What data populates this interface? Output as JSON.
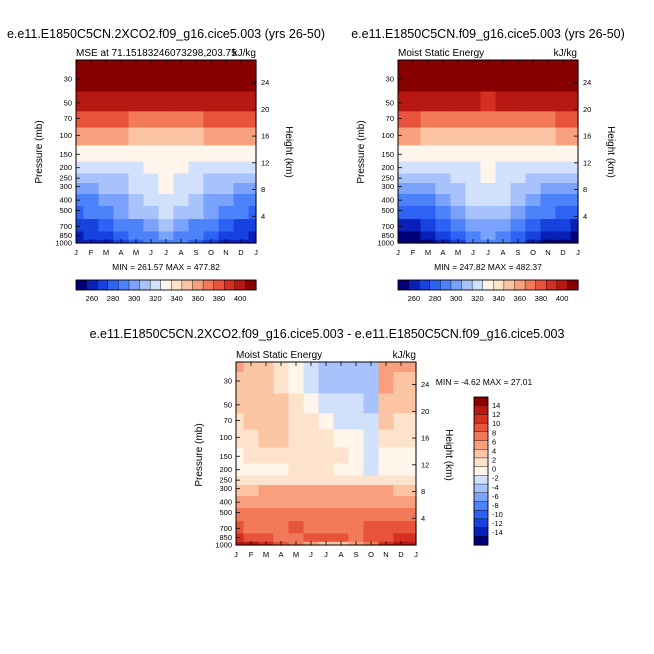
{
  "figure": {
    "bottom_title": "e.e11.E1850C5CN.2XCO2.f09_g16.cice5.003 - e.e11.E1850C5CN.f09_g16.cice5.003"
  },
  "palettes": {
    "absolute": [
      "#00007a",
      "#0a1fb8",
      "#1742e0",
      "#2d62f5",
      "#4d82fb",
      "#7ba3fb",
      "#a8c3fb",
      "#d2e1fb",
      "#fff5ea",
      "#fde2cc",
      "#fbc5a3",
      "#f8a07e",
      "#f27a5b",
      "#e8533c",
      "#d42f21",
      "#b81812",
      "#880000"
    ],
    "difference": [
      "#00007a",
      "#0a1fb8",
      "#1742e0",
      "#2d62f5",
      "#4d82fb",
      "#7ba3fb",
      "#a8c3fb",
      "#d2e1fb",
      "#fff5ea",
      "#fde2cc",
      "#fbc5a3",
      "#f8a07e",
      "#f27a5b",
      "#e8533c",
      "#d42f21",
      "#b81812",
      "#880000"
    ]
  },
  "chart_data": [
    {
      "type": "heatmap",
      "title": "e.e11.E1850C5CN.2XCO2.f09_g16.cice5.003 (yrs 26-50)",
      "subtitle_left": "MSE at 71.15183246073298,203.75",
      "subtitle_right": "kJ/kg",
      "stats": "MIN = 261.57 MAX = 477.82",
      "xlabel": "",
      "ylabel": "Pressure (mb)",
      "ylabel_right": "Height (km)",
      "x_ticks": [
        "J",
        "F",
        "M",
        "A",
        "M",
        "J",
        "J",
        "A",
        "S",
        "O",
        "N",
        "D",
        "J"
      ],
      "y_ticks": [
        "30",
        "50",
        "70",
        "100",
        "150",
        "200",
        "250",
        "300",
        "400",
        "500",
        "700",
        "850",
        "1000"
      ],
      "y_ticks_right": [
        "24",
        "20",
        "16",
        "12",
        "8",
        "4"
      ],
      "ylim": [
        1000,
        20
      ],
      "colorbar_labels": [
        "260",
        "280",
        "300",
        "320",
        "340",
        "360",
        "380",
        "400"
      ],
      "levels": [
        1000,
        850,
        700,
        500,
        400,
        300,
        250,
        200,
        150,
        100,
        70,
        50,
        30,
        20
      ],
      "values": [
        [
          262,
          264,
          268,
          276,
          284,
          292,
          296,
          292,
          285,
          276,
          268,
          264,
          262
        ],
        [
          268,
          270,
          274,
          282,
          290,
          298,
          302,
          298,
          291,
          282,
          274,
          270,
          268
        ],
        [
          276,
          278,
          282,
          290,
          298,
          306,
          310,
          306,
          299,
          290,
          282,
          278,
          276
        ],
        [
          288,
          290,
          294,
          302,
          310,
          316,
          320,
          316,
          310,
          302,
          294,
          290,
          288
        ],
        [
          296,
          298,
          302,
          308,
          316,
          322,
          326,
          322,
          316,
          308,
          302,
          298,
          296
        ],
        [
          306,
          308,
          310,
          314,
          320,
          326,
          330,
          326,
          320,
          314,
          310,
          308,
          306
        ],
        [
          314,
          315,
          316,
          318,
          322,
          328,
          332,
          328,
          322,
          318,
          316,
          315,
          314
        ],
        [
          324,
          324,
          325,
          325,
          326,
          330,
          333,
          330,
          327,
          325,
          325,
          324,
          324
        ],
        [
          338,
          338,
          338,
          338,
          338,
          337,
          336,
          337,
          338,
          338,
          338,
          338,
          338
        ],
        [
          362,
          362,
          361,
          360,
          358,
          356,
          354,
          356,
          358,
          360,
          361,
          362,
          362
        ],
        [
          382,
          382,
          381,
          380,
          378,
          376,
          374,
          376,
          378,
          380,
          381,
          382,
          382
        ],
        [
          408,
          408,
          407,
          406,
          404,
          402,
          400,
          402,
          404,
          406,
          407,
          408,
          408
        ],
        [
          440,
          440,
          440,
          440,
          440,
          440,
          440,
          440,
          440,
          440,
          440,
          440,
          440
        ],
        [
          470,
          470,
          470,
          470,
          470,
          470,
          470,
          470,
          470,
          470,
          470,
          470,
          470
        ]
      ]
    },
    {
      "type": "heatmap",
      "title": "e.e11.E1850C5CN.f09_g16.cice5.003 (yrs 26-50)",
      "subtitle_left": "Moist Static Energy",
      "subtitle_right": "kJ/kg",
      "stats": "MIN = 247.82 MAX = 482.37",
      "xlabel": "",
      "ylabel": "Pressure (mb)",
      "ylabel_right": "Height (km)",
      "x_ticks": [
        "J",
        "F",
        "M",
        "A",
        "M",
        "J",
        "J",
        "A",
        "S",
        "O",
        "N",
        "D",
        "J"
      ],
      "y_ticks": [
        "30",
        "50",
        "70",
        "100",
        "150",
        "200",
        "250",
        "300",
        "400",
        "500",
        "700",
        "850",
        "1000"
      ],
      "y_ticks_right": [
        "24",
        "20",
        "16",
        "12",
        "8",
        "4"
      ],
      "ylim": [
        1000,
        20
      ],
      "colorbar_labels": [
        "260",
        "280",
        "300",
        "320",
        "340",
        "360",
        "380",
        "400"
      ],
      "levels": [
        1000,
        850,
        700,
        500,
        400,
        300,
        250,
        200,
        150,
        100,
        70,
        50,
        30,
        20
      ],
      "values": [
        [
          248,
          250,
          256,
          266,
          278,
          290,
          294,
          290,
          280,
          268,
          258,
          252,
          248
        ],
        [
          256,
          258,
          264,
          274,
          286,
          296,
          300,
          296,
          288,
          276,
          266,
          260,
          256
        ],
        [
          266,
          268,
          274,
          284,
          294,
          304,
          308,
          304,
          296,
          286,
          276,
          270,
          266
        ],
        [
          280,
          282,
          288,
          296,
          306,
          314,
          318,
          314,
          306,
          298,
          290,
          284,
          280
        ],
        [
          290,
          292,
          296,
          304,
          312,
          320,
          324,
          320,
          312,
          304,
          296,
          292,
          290
        ],
        [
          300,
          302,
          306,
          312,
          318,
          324,
          328,
          324,
          318,
          312,
          306,
          302,
          300
        ],
        [
          310,
          311,
          313,
          316,
          320,
          326,
          330,
          326,
          320,
          316,
          313,
          311,
          310
        ],
        [
          320,
          321,
          322,
          323,
          325,
          329,
          332,
          329,
          326,
          323,
          322,
          321,
          320
        ],
        [
          336,
          336,
          336,
          336,
          336,
          335,
          334,
          335,
          336,
          336,
          336,
          336,
          336
        ],
        [
          360,
          360,
          359,
          358,
          356,
          354,
          352,
          354,
          356,
          358,
          359,
          360,
          360
        ],
        [
          380,
          380,
          379,
          378,
          376,
          374,
          372,
          374,
          376,
          378,
          379,
          380,
          380
        ],
        [
          406,
          406,
          405,
          404,
          402,
          400,
          398,
          400,
          402,
          404,
          405,
          406,
          406
        ],
        [
          440,
          440,
          440,
          440,
          440,
          440,
          440,
          440,
          440,
          440,
          440,
          440,
          440
        ],
        [
          470,
          470,
          470,
          470,
          470,
          470,
          470,
          470,
          470,
          470,
          470,
          470,
          470
        ]
      ]
    },
    {
      "type": "heatmap",
      "title": "e.e11.E1850C5CN.2XCO2.f09_g16.cice5.003 - e.e11.E1850C5CN.f09_g16.cice5.003",
      "subtitle_left": "Moist Static Energy",
      "subtitle_right": "kJ/kg",
      "stats": "MIN =  -4.62 MAX =  27.01",
      "xlabel": "",
      "ylabel": "Pressure (mb)",
      "ylabel_right": "Height (km)",
      "x_ticks": [
        "J",
        "F",
        "M",
        "A",
        "M",
        "J",
        "J",
        "A",
        "S",
        "O",
        "N",
        "D",
        "J"
      ],
      "y_ticks": [
        "30",
        "50",
        "70",
        "100",
        "150",
        "200",
        "250",
        "300",
        "400",
        "500",
        "700",
        "850",
        "1000"
      ],
      "y_ticks_right": [
        "24",
        "20",
        "16",
        "12",
        "8",
        "4"
      ],
      "ylim": [
        1000,
        20
      ],
      "colorbar_labels": [
        "14",
        "12",
        "10",
        "8",
        "6",
        "4",
        "2",
        "0",
        "-2",
        "-4",
        "-6",
        "-8",
        "-10",
        "-12",
        "-14"
      ],
      "levels": [
        1000,
        850,
        700,
        500,
        400,
        300,
        250,
        200,
        150,
        100,
        70,
        50,
        30,
        20
      ],
      "values": [
        [
          14,
          14,
          12,
          10,
          9,
          6,
          4,
          4,
          6,
          9,
          12,
          14,
          14
        ],
        [
          12,
          11,
          10,
          9,
          9,
          10,
          11,
          10,
          9,
          10,
          11,
          12,
          12
        ],
        [
          10,
          9,
          9,
          9,
          10,
          9,
          8,
          9,
          9,
          10,
          10,
          10,
          10
        ],
        [
          8,
          8,
          8,
          8,
          8,
          8,
          8,
          8,
          8,
          8,
          8,
          8,
          8
        ],
        [
          7,
          7,
          7,
          7,
          7,
          7,
          7,
          7,
          7,
          7,
          7,
          7,
          7
        ],
        [
          5,
          5,
          6,
          6,
          6,
          6,
          6,
          6,
          6,
          6,
          6,
          5,
          5
        ],
        [
          3,
          3,
          3,
          3,
          3,
          3,
          3,
          3,
          3,
          3,
          3,
          3,
          3
        ],
        [
          1,
          1,
          1,
          1,
          2,
          2,
          2,
          1,
          1,
          -1,
          1,
          1,
          1
        ],
        [
          1,
          2,
          3,
          3,
          3,
          3,
          2,
          2,
          1,
          -2,
          1,
          1,
          1
        ],
        [
          2,
          3,
          4,
          4,
          3,
          2,
          2,
          1,
          0,
          -1,
          2,
          2,
          2
        ],
        [
          3,
          4,
          5,
          4,
          3,
          2,
          1,
          -1,
          -1,
          -2,
          4,
          3,
          3
        ],
        [
          4,
          5,
          5,
          4,
          2,
          1,
          -1,
          -2,
          -2,
          -3,
          5,
          4,
          4
        ],
        [
          5,
          5,
          4,
          3,
          1,
          -1,
          -3,
          -3,
          -3,
          -3,
          6,
          5,
          5
        ],
        [
          6,
          5,
          4,
          3,
          0,
          -2,
          -4,
          -4,
          -4,
          -3,
          6,
          6,
          6
        ]
      ]
    }
  ]
}
